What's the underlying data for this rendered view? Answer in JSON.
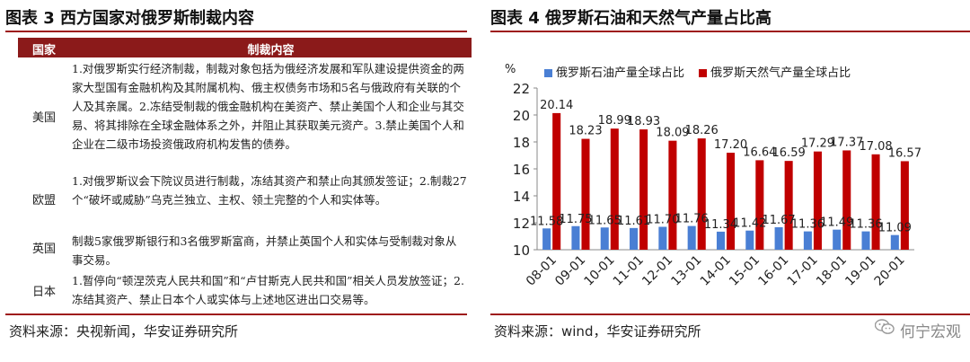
{
  "left": {
    "title": "图表 3  西方国家对俄罗斯制裁内容",
    "table": {
      "headers": [
        "国家",
        "制裁内容"
      ],
      "rows": [
        {
          "country": "美国",
          "text": "1.对俄罗斯实行经济制裁，制裁对象包括为俄经济发展和军队建设提供资金的两家大型国有金融机构及其附属机构、俄主权债务市场和5名与俄政府有关联的个人及其亲属。2.冻结受制裁的俄金融机构在美资产、禁止美国个人和企业与其交易、将其排除在全球金融体系之外，并阻止其获取美元资产。3.禁止美国个人和企业在二级市场投资俄政府机构发售的债券。"
        },
        {
          "country": "欧盟",
          "text": "1.对俄罗斯议会下院议员进行制裁，冻结其资产和禁止向其颁发签证；2.制裁27个“破坏或威胁”乌克兰独立、主权、领土完整的个人和实体等。"
        },
        {
          "country": "英国",
          "text": "制裁5家俄罗斯银行和3名俄罗斯富商，并禁止英国个人和实体与受制裁对象从事交易。"
        },
        {
          "country": "日本",
          "text": "1.暂停向“顿涅茨克人民共和国”和“卢甘斯克人民共和国”相关人员发放签证；2.冻结其资产、禁止日本个人或实体与上述地区进出口交易等。"
        }
      ]
    },
    "source": "资料来源：央视新闻，华安证券研究所"
  },
  "right": {
    "title": "图表 4 俄罗斯石油和天然气产量占比高",
    "source": "资料来源：wind，华安证券研究所"
  },
  "watermark": "何宁宏观",
  "colors": {
    "oil": "#4a7fd4",
    "gas": "#c00000",
    "accent": "#9e1b1b"
  },
  "chart_data": {
    "type": "bar",
    "categories": [
      "08-01",
      "09-01",
      "10-01",
      "11-01",
      "12-01",
      "13-01",
      "14-01",
      "15-01",
      "16-01",
      "17-01",
      "18-01",
      "19-01",
      "20-01"
    ],
    "series": [
      {
        "name": "俄罗斯石油产量全球占比",
        "values": [
          11.58,
          11.75,
          11.65,
          11.61,
          11.7,
          11.76,
          11.34,
          11.42,
          11.67,
          11.36,
          11.49,
          11.36,
          11.09
        ]
      },
      {
        "name": "俄罗斯天然气产量全球占比",
        "values": [
          20.14,
          18.23,
          18.99,
          18.93,
          18.09,
          18.26,
          17.2,
          16.64,
          16.59,
          17.29,
          17.37,
          17.08,
          16.57
        ]
      }
    ],
    "data_labels": {
      "oil": [
        "11.58",
        "11.75",
        "11.65",
        "11.61",
        "11.70",
        "11.76",
        "11.34",
        "11.42",
        "11.67",
        "11.36",
        "11.49",
        "11.36",
        "11.09"
      ],
      "gas": [
        "20.14",
        "18.23",
        "18.99",
        "18.93",
        "18.09",
        "18.26",
        "17.20",
        "16.64",
        "16.59",
        "17.29",
        "17.37",
        "17.08",
        "16.57"
      ]
    },
    "yunit": "%",
    "yticks": [
      "10",
      "12",
      "14",
      "16",
      "18",
      "20",
      "22"
    ],
    "ylim": [
      10,
      22
    ],
    "grid": false,
    "legend": "top"
  }
}
